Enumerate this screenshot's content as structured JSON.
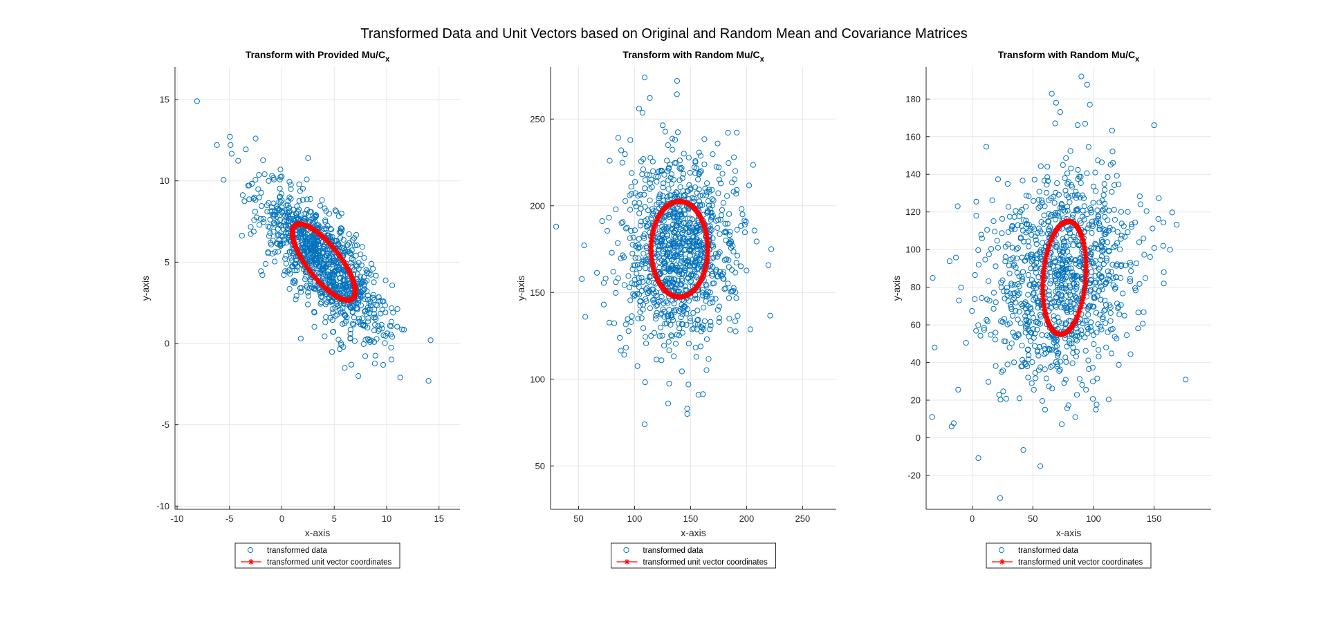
{
  "figure": {
    "suptitle": "Transformed Data and Unit Vectors based on Original and Random Mean and Covariance Matrices"
  },
  "colors": {
    "data": "#0072BD",
    "unit": "#FF0000",
    "grid": "#e6e6e6",
    "axis": "#262626"
  },
  "chart_data": [
    {
      "type": "scatter",
      "title": "Transform with Provided Mu/C",
      "title_subscript": "x",
      "xlabel": "x-axis",
      "ylabel": "y-axis",
      "xlim": [
        -10.2,
        17
      ],
      "ylim": [
        -10.2,
        17
      ],
      "xticks": [
        -10,
        -5,
        0,
        5,
        10,
        15
      ],
      "yticks": [
        -10,
        -5,
        0,
        5,
        10,
        15
      ],
      "grid": true,
      "legend_position": "below",
      "series": [
        {
          "name": "transformed data",
          "marker": "o",
          "cloud": {
            "mean": [
              4,
              5
            ],
            "cov": [
              [
                9,
                -5.4
              ],
              [
                -5.4,
                5.5
              ]
            ],
            "count": 1000
          },
          "points": [
            [
              -8.1,
              14.9
            ],
            [
              -6.2,
              12.2
            ],
            [
              -4.9,
              12.2
            ],
            [
              -2.5,
              12.6
            ],
            [
              2.5,
              11.4
            ],
            [
              14.2,
              0.2
            ],
            [
              14.0,
              -2.3
            ],
            [
              11.3,
              -2.1
            ],
            [
              6.0,
              -1.5
            ],
            [
              7.3,
              -2.0
            ],
            [
              1.8,
              0.3
            ]
          ]
        },
        {
          "name": "transformed unit vector coordinates",
          "marker": "*",
          "ellipse": {
            "center": [
              4,
              5
            ],
            "cov": [
              [
                9,
                -5.4
              ],
              [
                -5.4,
                5.5
              ]
            ]
          }
        }
      ]
    },
    {
      "type": "scatter",
      "title": "Transform with Random Mu/C",
      "title_subscript": "x",
      "xlabel": "x-axis",
      "ylabel": "y-axis",
      "xlim": [
        25,
        280
      ],
      "ylim": [
        25,
        280
      ],
      "xticks": [
        50,
        100,
        150,
        200,
        250
      ],
      "yticks": [
        50,
        100,
        150,
        200,
        250
      ],
      "grid": true,
      "legend_position": "below",
      "series": [
        {
          "name": "transformed data",
          "marker": "o",
          "cloud": {
            "mean": [
              140,
              175
            ],
            "cov": [
              [
                640,
                0
              ],
              [
                0,
                760
              ]
            ],
            "count": 1000
          },
          "points": [
            [
              109,
              274
            ],
            [
              138,
              272
            ],
            [
              104,
              256
            ],
            [
              30,
              188
            ],
            [
              222,
              175
            ],
            [
              56,
              136
            ],
            [
              109,
              74
            ],
            [
              130,
              86
            ],
            [
              147,
              83
            ],
            [
              147,
              80
            ],
            [
              157,
              91
            ]
          ]
        },
        {
          "name": "transformed unit vector coordinates",
          "marker": "*",
          "ellipse": {
            "center": [
              140,
              175
            ],
            "cov": [
              [
                640,
                0
              ],
              [
                0,
                760
              ]
            ]
          }
        }
      ]
    },
    {
      "type": "scatter",
      "title": "Transform with Random Mu/C",
      "title_subscript": "x",
      "xlabel": "x-axis",
      "ylabel": "y-axis",
      "xlim": [
        -38,
        197
      ],
      "ylim": [
        -38,
        197
      ],
      "xticks": [
        0,
        50,
        100,
        150
      ],
      "yticks": [
        -20,
        0,
        20,
        40,
        60,
        80,
        100,
        120,
        140,
        160,
        180
      ],
      "grid": true,
      "legend_position": "below",
      "series": [
        {
          "name": "transformed data",
          "marker": "o",
          "cloud": {
            "mean": [
              74,
              85
            ],
            "cov": [
              [
                1000,
                160
              ],
              [
                160,
                900
              ]
            ],
            "count": 1000
          },
          "points": [
            [
              90,
              192
            ],
            [
              97,
              177
            ],
            [
              -17,
              6
            ],
            [
              23,
              -32
            ],
            [
              -31,
              48
            ],
            [
              158,
              88
            ],
            [
              158,
              82
            ],
            [
              85,
              11
            ],
            [
              102,
              15
            ],
            [
              -12,
              123
            ]
          ]
        },
        {
          "name": "transformed unit vector coordinates",
          "marker": "*",
          "ellipse": {
            "center": [
              76,
              85
            ],
            "cov": [
              [
                320,
                96
              ],
              [
                96,
                900
              ]
            ]
          }
        }
      ]
    }
  ]
}
